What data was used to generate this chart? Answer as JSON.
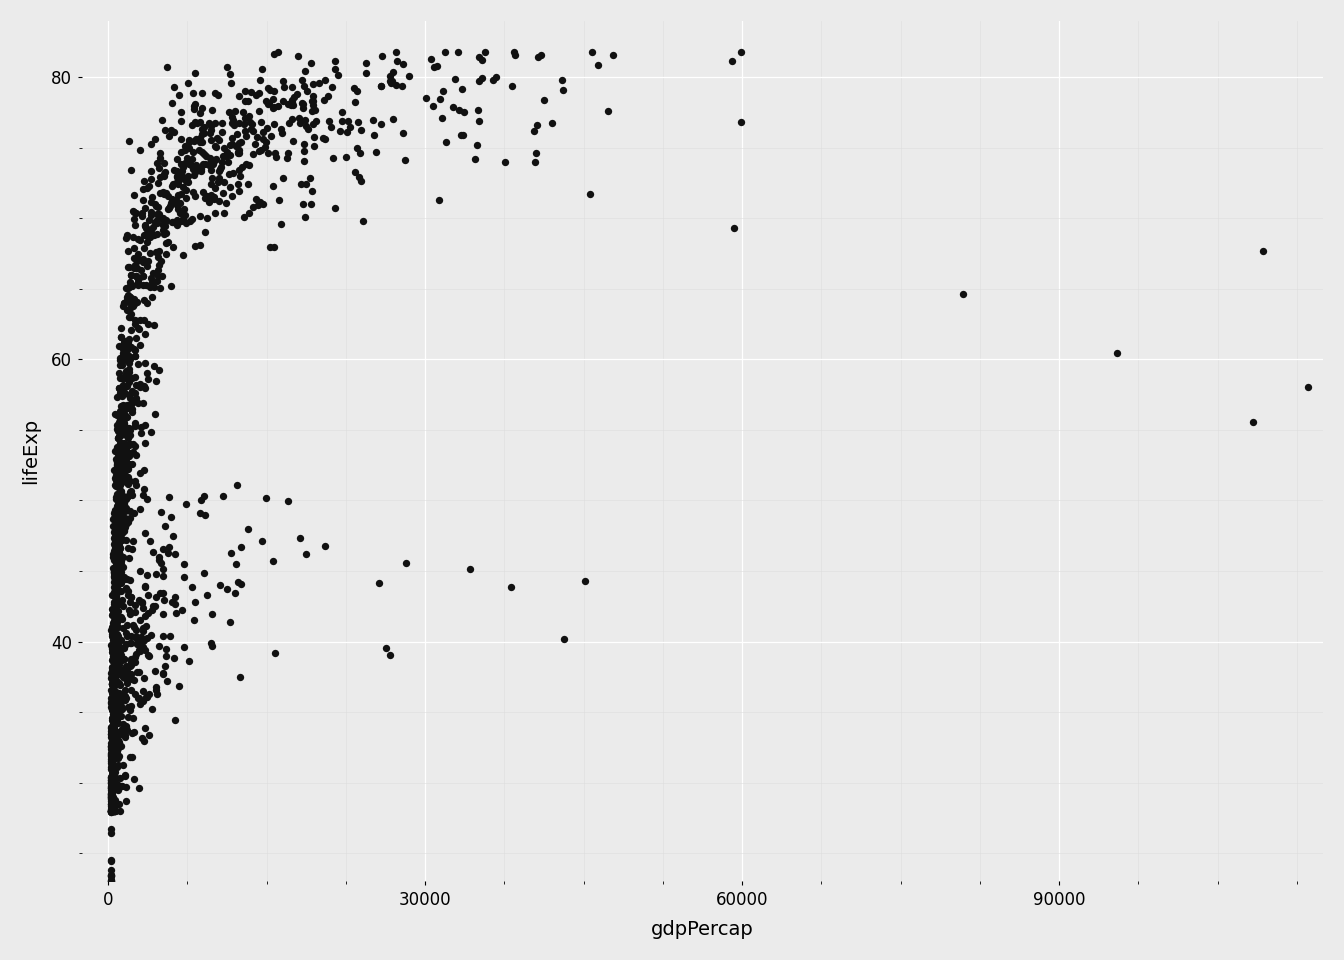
{
  "xlabel": "gdpPercap",
  "ylabel": "lifeExp",
  "background_color": "#EBEBEB",
  "grid_color": "#FFFFFF",
  "dot_color": "#111111",
  "dot_size": 28,
  "xlim": [
    -2500,
    115000
  ],
  "ylim": [
    23,
    84
  ],
  "xticks": [
    0,
    30000,
    60000,
    90000
  ],
  "yticks": [
    40,
    60,
    80
  ],
  "xlabel_fontsize": 14,
  "ylabel_fontsize": 14,
  "tick_fontsize": 12,
  "figsize": [
    13.44,
    9.6
  ]
}
